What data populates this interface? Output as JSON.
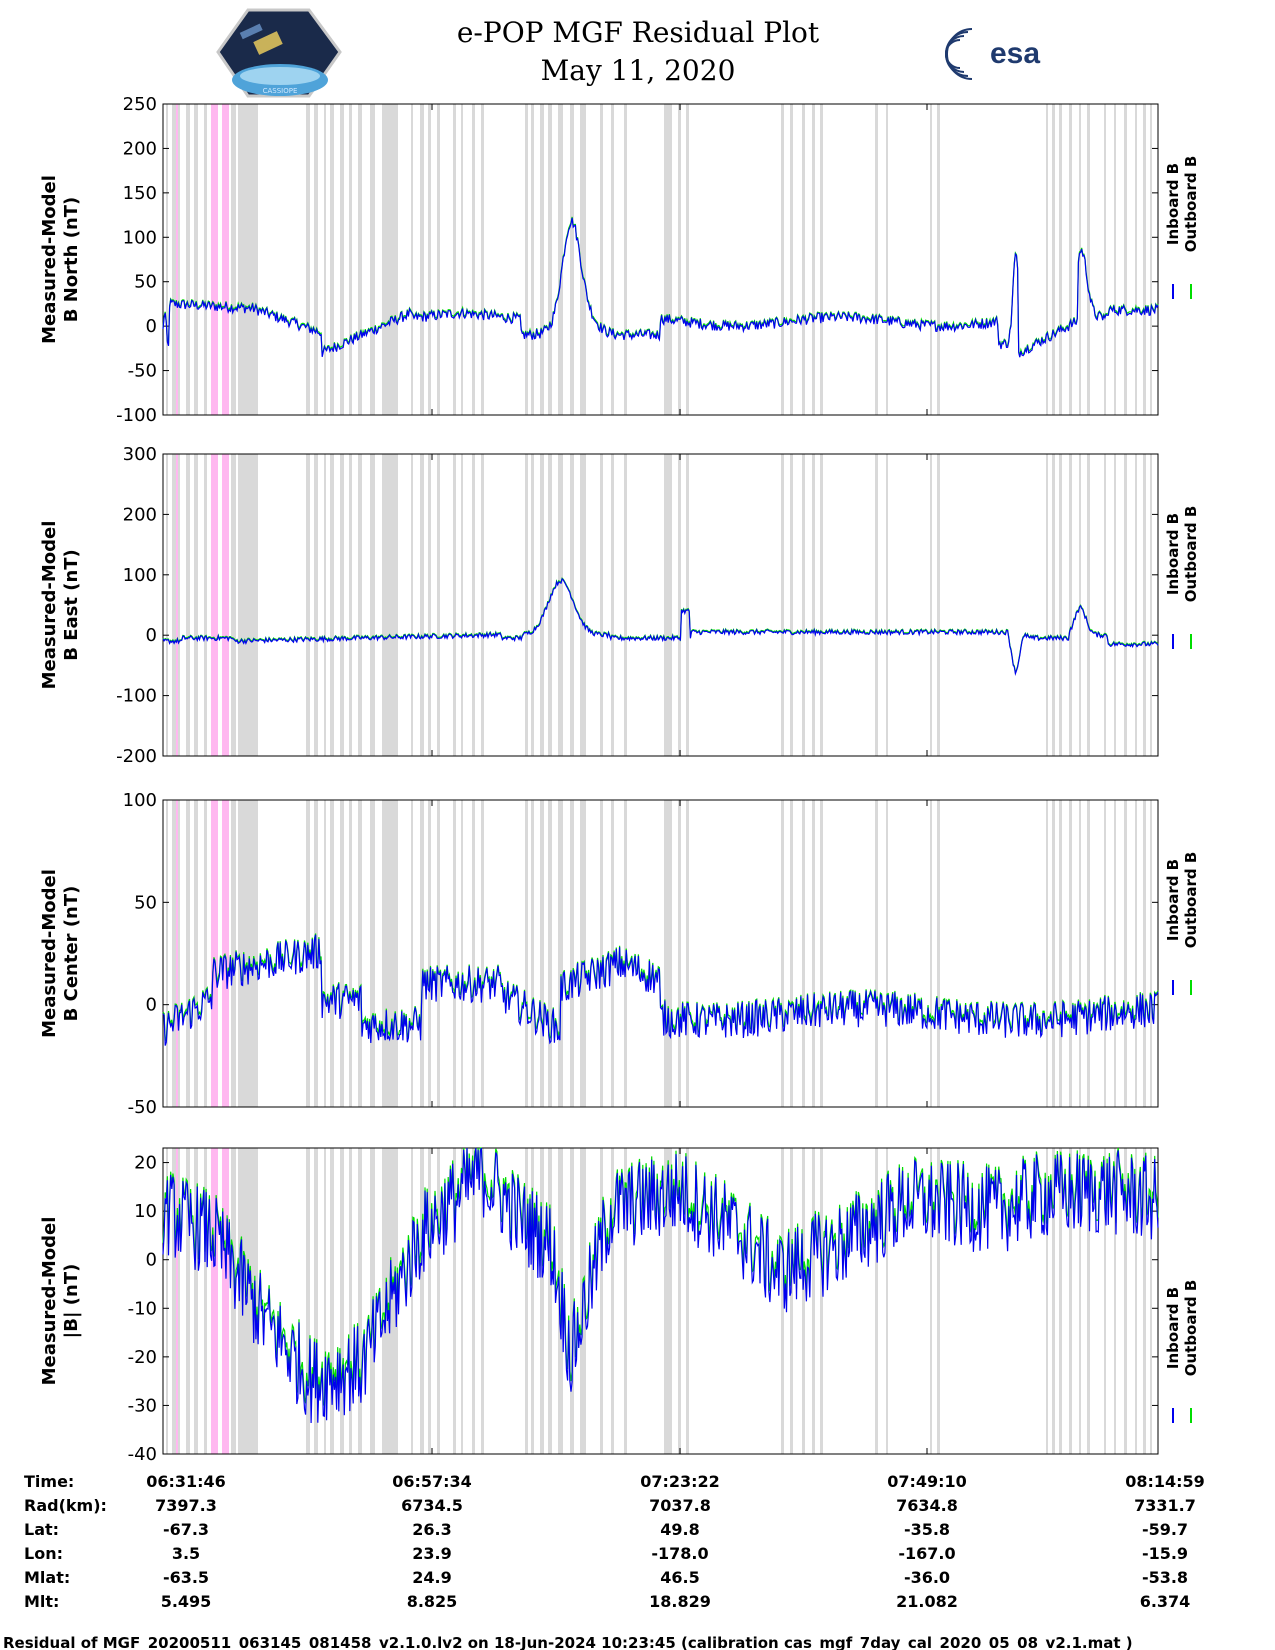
{
  "header": {
    "title": "e-POP MGF Residual Plot",
    "date": "May 11, 2020",
    "left_logo_text": "CASSIOPE",
    "right_logo_text": "esa"
  },
  "colors": {
    "inboard": "#0000ee",
    "outboard": "#00dd00",
    "gap_gray": "#d9d9d9",
    "gap_pink": "#ffb8f0"
  },
  "legend": {
    "inboard": "Inboard B",
    "outboard": "Outboard B"
  },
  "chart_data": [
    {
      "type": "line",
      "title": "",
      "ylabel": [
        "Measured-Model",
        "B North (nT)"
      ],
      "ylim": [
        -100,
        250
      ],
      "yticks": [
        250,
        200,
        150,
        100,
        50,
        0,
        -50,
        -100
      ],
      "series": [
        {
          "name": "Inboard B",
          "key": "inboard",
          "trace": "north"
        },
        {
          "name": "Outboard B",
          "key": "outboard"
        }
      ]
    },
    {
      "type": "line",
      "ylabel": [
        "Measured-Model",
        "B East (nT)"
      ],
      "ylim": [
        -200,
        300
      ],
      "yticks": [
        300,
        200,
        100,
        0,
        -100,
        -200
      ],
      "series": [
        {
          "name": "Inboard B",
          "key": "inboard",
          "trace": "east"
        },
        {
          "name": "Outboard B",
          "key": "outboard"
        }
      ]
    },
    {
      "type": "line",
      "ylabel": [
        "Measured-Model",
        "B Center (nT)"
      ],
      "ylim": [
        -50,
        100
      ],
      "yticks": [
        100,
        50,
        0,
        -50
      ],
      "series": [
        {
          "name": "Inboard B",
          "key": "inboard",
          "trace": "center"
        },
        {
          "name": "Outboard B",
          "key": "outboard"
        }
      ]
    },
    {
      "type": "line",
      "ylabel": [
        "Measured-Model",
        "|B| (nT)"
      ],
      "ylim": [
        -40,
        23
      ],
      "yticks": [
        20,
        10,
        0,
        -10,
        -20,
        -30,
        -40
      ],
      "series": [
        {
          "name": "Inboard B",
          "key": "inboard",
          "trace": "total"
        },
        {
          "name": "Outboard B",
          "key": "outboard"
        }
      ]
    }
  ],
  "info_table": {
    "row_labels": [
      "Time:",
      "Rad(km):",
      "Lat:",
      "Lon:",
      "Mlat:",
      "Mlt:"
    ],
    "columns": [
      [
        "06:31:46",
        "7397.3",
        "-67.3",
        "3.5",
        "-63.5",
        "5.495"
      ],
      [
        "06:57:34",
        "6734.5",
        "26.3",
        "23.9",
        "24.9",
        "8.825"
      ],
      [
        "07:23:22",
        "7037.8",
        "49.8",
        "-178.0",
        "46.5",
        "18.829"
      ],
      [
        "07:49:10",
        "7634.8",
        "-35.8",
        "-167.0",
        "-36.0",
        "21.082"
      ],
      [
        "08:14:59",
        "7331.7",
        "-59.7",
        "-15.9",
        "-53.8",
        "6.374"
      ]
    ]
  },
  "footer": "Residual of MGF_20200511_063145_081458_v2.1.0.lv2 on 18-Jun-2024 10:23:45 (calibration cas_mgf_7day_cal_2020_05_08_v2.1.mat )"
}
